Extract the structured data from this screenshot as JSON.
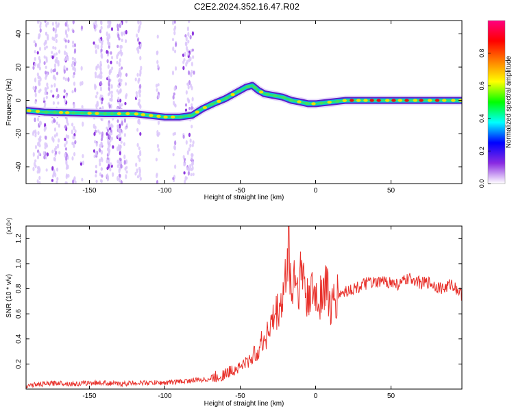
{
  "title": "C2E2.2024.352.16.47.R02",
  "colors": {
    "snr_line": "#e8302a",
    "track_low": "#5a1ec8",
    "track_mid": "#00c8e0",
    "track_high": "#f0e000",
    "track_peak": "#e81010"
  },
  "chart_data": [
    {
      "name": "spectrogram",
      "type": "heatmap",
      "xlabel": "Height of straight line (km)",
      "ylabel": "Frequency (Hz)",
      "xlim": [
        -192,
        97
      ],
      "ylim": [
        -50,
        48
      ],
      "xticks": [
        -150,
        -100,
        -50,
        0,
        50
      ],
      "yticks": [
        -40,
        -20,
        0,
        20,
        40
      ],
      "grid": false,
      "ridge": {
        "x": [
          -192,
          -180,
          -160,
          -140,
          -120,
          -100,
          -90,
          -82,
          -75,
          -68,
          -60,
          -52,
          -46,
          -42,
          -38,
          -34,
          -28,
          -22,
          -16,
          -10,
          -5,
          0,
          10,
          20,
          40,
          60,
          80,
          97
        ],
        "y": [
          -6,
          -7,
          -7.5,
          -8,
          -8,
          -10,
          -10,
          -9,
          -5,
          -2,
          1,
          5,
          8,
          9,
          6,
          4,
          3,
          2,
          0,
          -1,
          -2,
          -2,
          -1,
          0,
          0,
          0,
          0,
          0
        ]
      },
      "scattered_noise_x_range": [
        -192,
        -80
      ],
      "colorbar": {
        "label": "Normalized spectral amplitude",
        "range": [
          0,
          1
        ],
        "ticks": [
          "0.0",
          "0.2",
          "0.4",
          "0.6",
          "0.8"
        ],
        "stops": [
          "#ffffff",
          "#8a2be2",
          "#0000ff",
          "#00ffff",
          "#00ff00",
          "#ffff00",
          "#ff8000",
          "#ff0000",
          "#ff0080"
        ]
      }
    },
    {
      "name": "snr",
      "type": "line",
      "xlabel": "Height of straight line (km)",
      "ylabel": "SNR (10 * v/v)",
      "y_multiplier": "(x10⁴)",
      "xlim": [
        -192,
        97
      ],
      "ylim": [
        0,
        1.3
      ],
      "xticks": [
        -150,
        -100,
        -50,
        0,
        50
      ],
      "yticks": [
        0.2,
        0.4,
        0.6,
        0.8,
        1.0,
        1.2
      ],
      "grid": false,
      "series": [
        {
          "x": [
            -192,
            -180,
            -170,
            -160,
            -150,
            -140,
            -130,
            -120,
            -110,
            -100,
            -90,
            -80,
            -70,
            -60,
            -55,
            -50,
            -45,
            -40,
            -35,
            -30,
            -26,
            -22,
            -20,
            -18,
            -16,
            -14,
            -12,
            -10,
            -8,
            -6,
            -4,
            -2,
            0,
            2,
            4,
            6,
            8,
            10,
            12,
            15,
            20,
            25,
            30,
            35,
            40,
            45,
            50,
            55,
            60,
            65,
            70,
            75,
            80,
            85,
            90,
            95,
            97
          ],
          "y": [
            0.03,
            0.04,
            0.05,
            0.04,
            0.05,
            0.05,
            0.04,
            0.05,
            0.05,
            0.05,
            0.06,
            0.07,
            0.08,
            0.12,
            0.15,
            0.18,
            0.22,
            0.28,
            0.38,
            0.5,
            0.6,
            0.7,
            0.85,
            1.25,
            0.7,
            0.95,
            0.8,
            0.9,
            0.95,
            0.65,
            0.8,
            0.72,
            0.75,
            0.7,
            0.8,
            0.78,
            0.85,
            0.6,
            0.68,
            0.75,
            0.78,
            0.8,
            0.82,
            0.85,
            0.84,
            0.86,
            0.85,
            0.83,
            0.87,
            0.88,
            0.84,
            0.85,
            0.82,
            0.8,
            0.84,
            0.78,
            0.75
          ]
        }
      ]
    }
  ]
}
